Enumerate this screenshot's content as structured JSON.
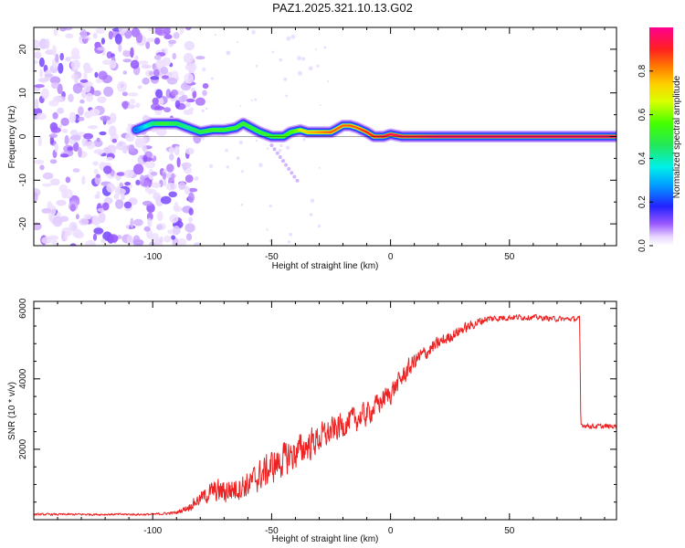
{
  "figure_title": "PAZ1.2025.321.10.13.G02",
  "colors": {
    "snr_line": "#ee2222",
    "axis": "#000000",
    "spectral_low": "#8a3cff"
  },
  "chart_data": [
    {
      "type": "heatmap",
      "title": "PAZ1.2025.321.10.13.G02",
      "xlabel": "Height of straight line (km)",
      "ylabel": "Frequency (Hz)",
      "xlim": [
        -150,
        95
      ],
      "ylim": [
        -25,
        25
      ],
      "xticks": [
        -100,
        -50,
        0,
        50
      ],
      "xtick_labels": [
        "-100",
        "-50",
        "0",
        "50"
      ],
      "yticks": [
        -20,
        -10,
        0,
        10,
        20
      ],
      "ytick_labels": [
        "-20",
        "-10",
        "0",
        "10",
        "20"
      ],
      "noise_region_x": [
        -150,
        -83
      ],
      "ridge": {
        "x": [
          -107,
          -100,
          -95,
          -90,
          -85,
          -80,
          -75,
          -70,
          -65,
          -62,
          -55,
          -50,
          -45,
          -42,
          -38,
          -35,
          -30,
          -25,
          -20,
          -17,
          -14,
          -10,
          -7,
          -3,
          0,
          5,
          10,
          20,
          40,
          60,
          95
        ],
        "freq": [
          1.5,
          3,
          3,
          3,
          2,
          1,
          1.5,
          1.5,
          2,
          3,
          1,
          0,
          0,
          1,
          1.5,
          1,
          1,
          1,
          2.5,
          2.5,
          2,
          1,
          0,
          0,
          0.5,
          0,
          0,
          0,
          0,
          0,
          0
        ],
        "amplitude": [
          0.25,
          0.5,
          0.6,
          0.55,
          0.5,
          0.55,
          0.6,
          0.6,
          0.6,
          0.6,
          0.6,
          0.6,
          0.65,
          0.65,
          0.7,
          0.75,
          0.8,
          0.85,
          0.85,
          0.85,
          0.85,
          0.9,
          0.9,
          0.95,
          0.95,
          0.95,
          0.95,
          1,
          1,
          1,
          1
        ]
      },
      "colorbar": {
        "label": "Normalized spectral amplitude",
        "range": [
          0,
          1
        ],
        "ticks": [
          0.0,
          0.2,
          0.4,
          0.6,
          0.8
        ],
        "tick_labels": [
          "0.0",
          "0.2",
          "0.4",
          "0.6",
          "0.8"
        ]
      }
    },
    {
      "type": "line",
      "xlabel": "Height of straight line (km)",
      "ylabel": "SNR (10 * v/v)",
      "xlim": [
        -150,
        95
      ],
      "ylim": [
        0,
        6200
      ],
      "xticks": [
        -100,
        -50,
        0,
        50
      ],
      "xtick_labels": [
        "-100",
        "-50",
        "0",
        "50"
      ],
      "yticks": [
        2000,
        4000,
        6000
      ],
      "ytick_labels": [
        "2000",
        "4000",
        "6000"
      ],
      "series": [
        {
          "name": "SNR",
          "x": [
            -150,
            -120,
            -100,
            -90,
            -85,
            -80,
            -75,
            -70,
            -60,
            -50,
            -40,
            -30,
            -20,
            -10,
            0,
            10,
            20,
            30,
            40,
            50,
            60,
            70,
            79.5,
            80,
            85,
            95
          ],
          "y": [
            150,
            150,
            150,
            200,
            350,
            600,
            800,
            800,
            1000,
            1500,
            1900,
            2300,
            2700,
            3000,
            3600,
            4500,
            5000,
            5400,
            5700,
            5750,
            5750,
            5700,
            5700,
            2700,
            2650,
            2650
          ],
          "noise_amplitude": [
            40,
            40,
            40,
            60,
            150,
            250,
            400,
            500,
            500,
            650,
            650,
            550,
            500,
            450,
            400,
            350,
            250,
            200,
            150,
            120,
            100,
            100,
            100,
            100,
            100,
            100
          ]
        }
      ]
    }
  ]
}
